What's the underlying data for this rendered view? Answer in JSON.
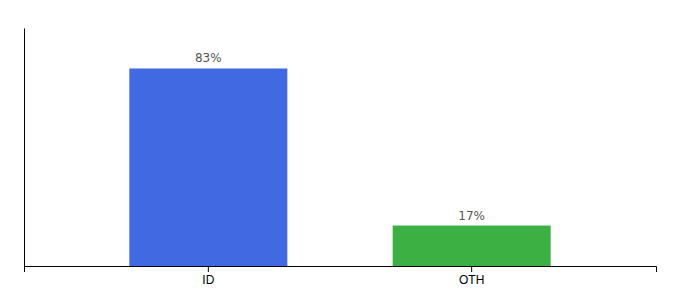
{
  "chart_data": {
    "type": "bar",
    "categories": [
      "ID",
      "OTH"
    ],
    "values": [
      83,
      17
    ],
    "value_labels": [
      "83%",
      "17%"
    ],
    "colors": [
      "#4169E1",
      "#3CB043"
    ],
    "ylim": [
      0,
      100
    ],
    "data_labels": true,
    "tick_labels": "x",
    "grid": false
  }
}
